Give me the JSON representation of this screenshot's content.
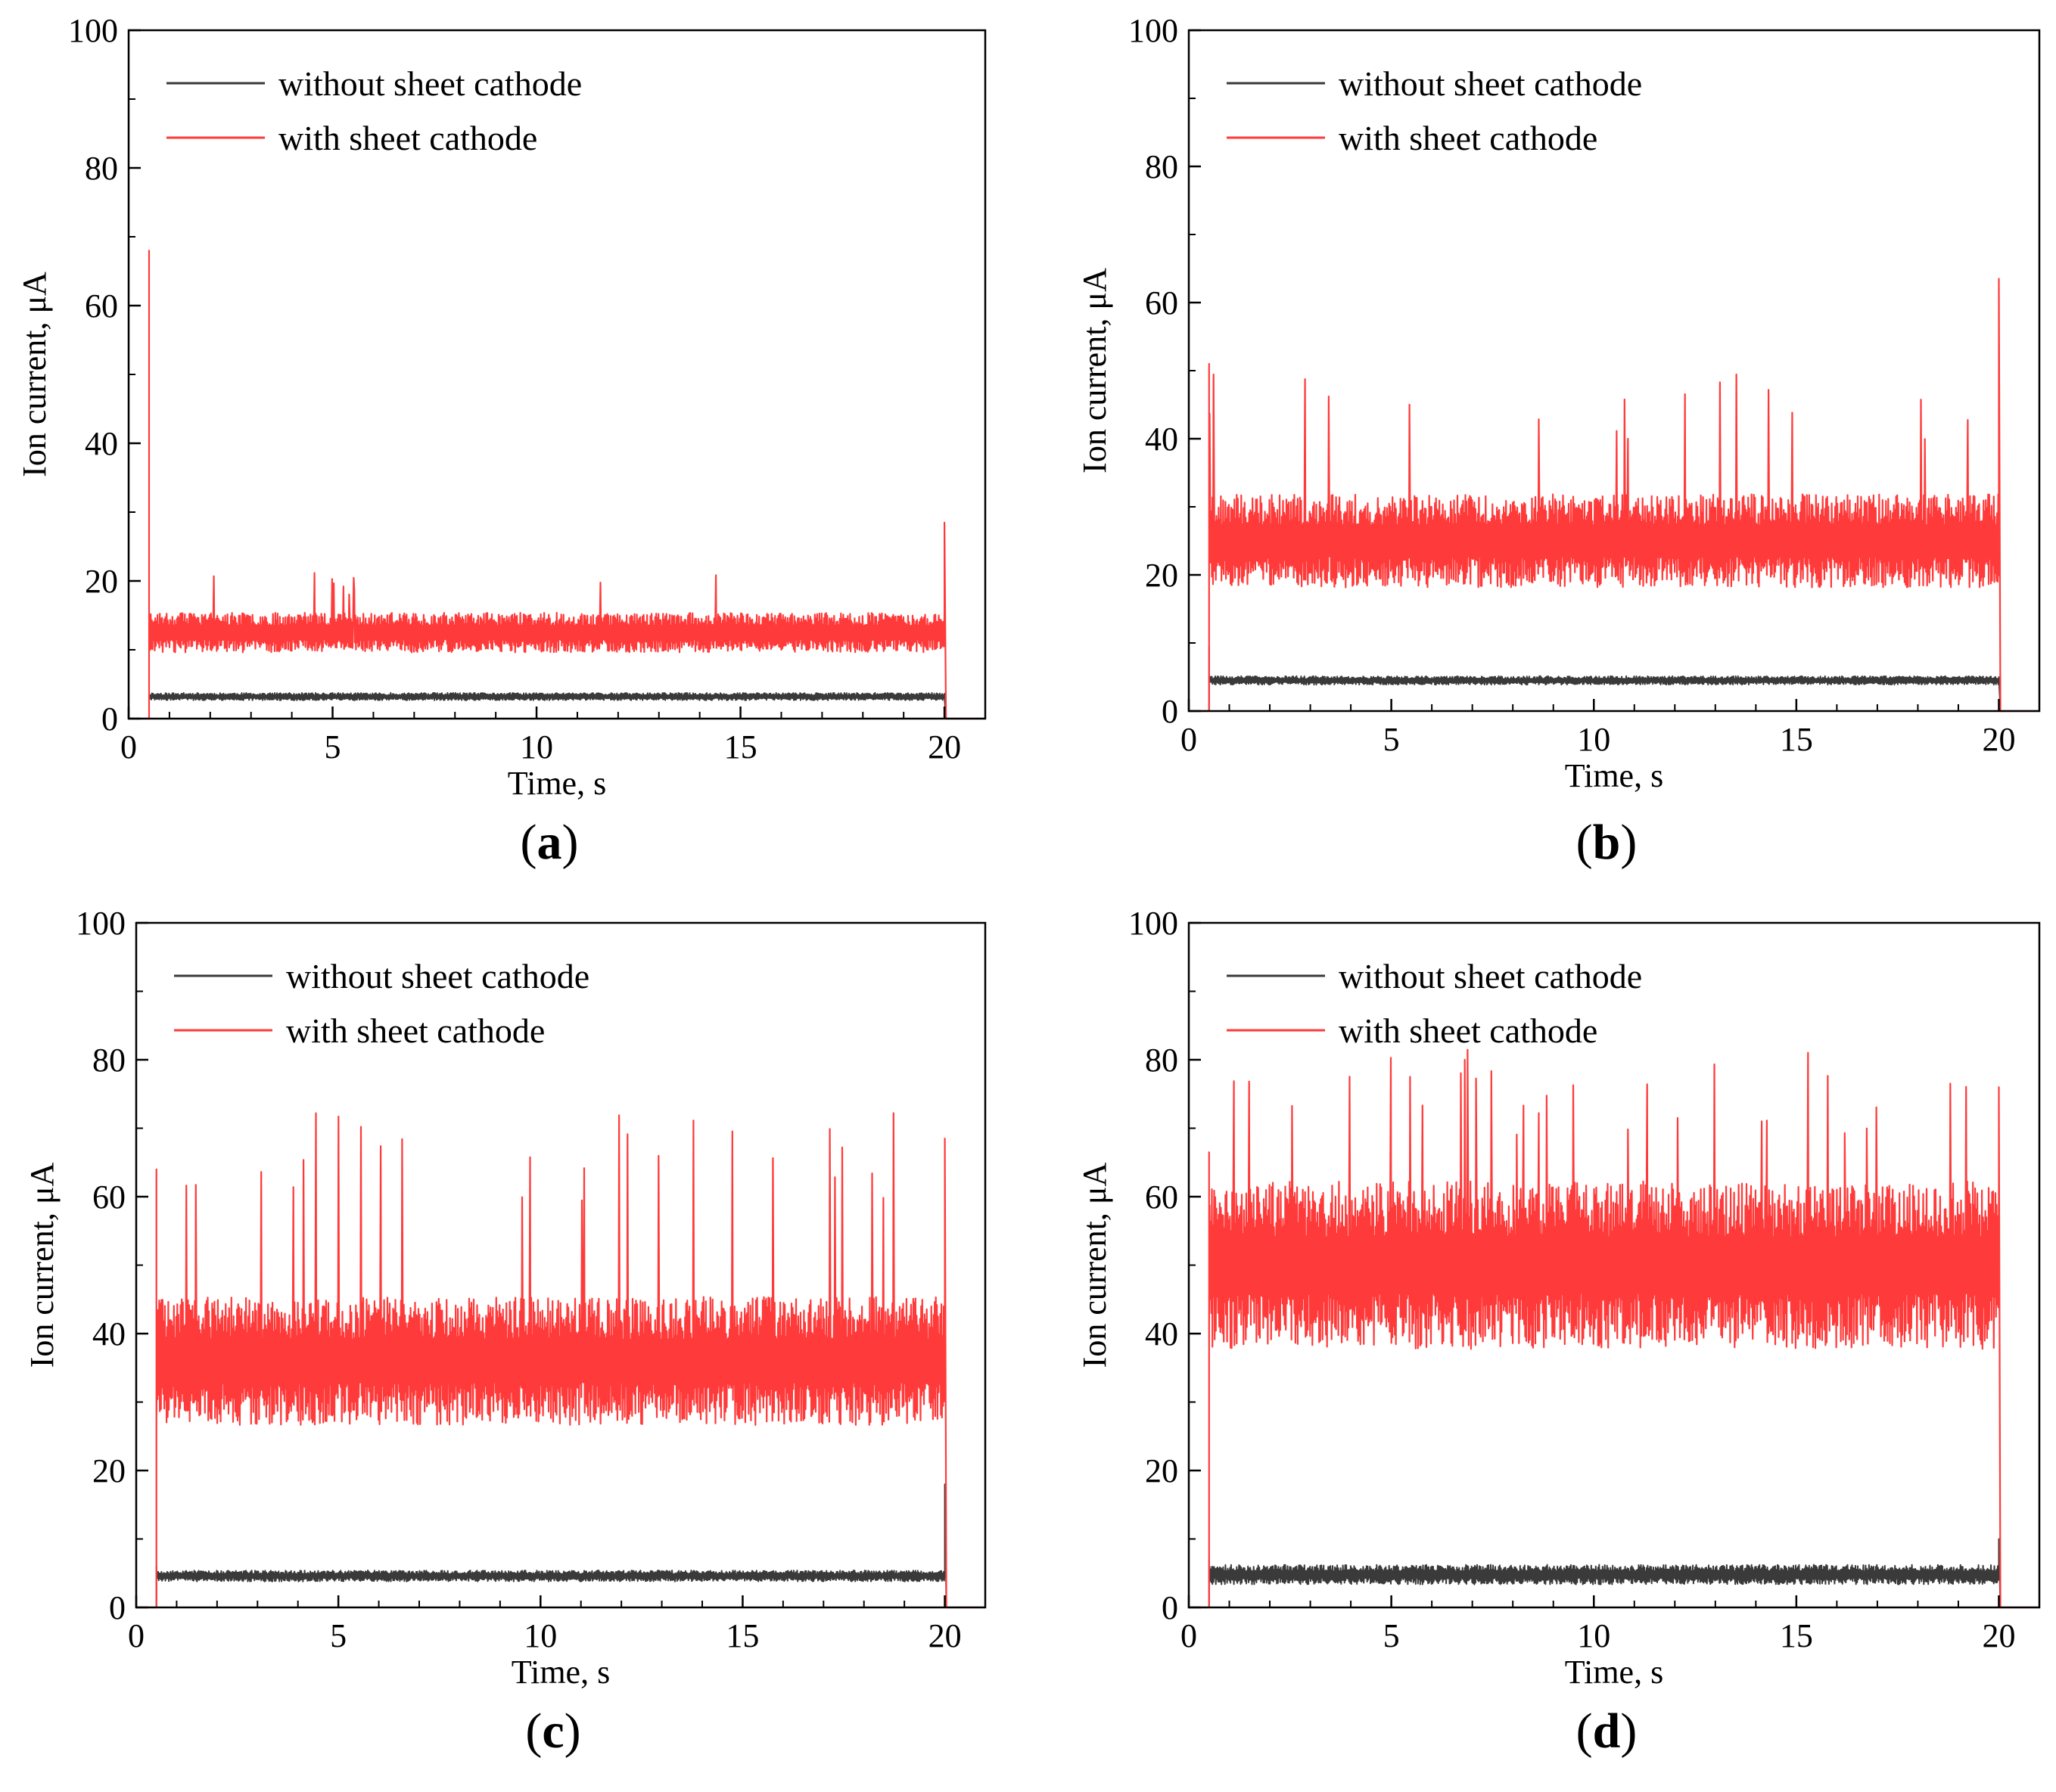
{
  "colors": {
    "without": "#3a3a3a",
    "with": "#ff3a3a",
    "axis": "#000000"
  },
  "chart_data": [
    {
      "type": "line",
      "panel": "a",
      "label_prefix": "(",
      "label_letter": "a",
      "label_suffix": ")",
      "xlabel": "Time, s",
      "ylabel": "Ion current, μA",
      "xlim": [
        0,
        21
      ],
      "ylim": [
        0,
        100
      ],
      "xticks": [
        0,
        5,
        10,
        15,
        20
      ],
      "yticks": [
        0,
        20,
        40,
        60,
        80,
        100
      ],
      "legend": [
        "without sheet cathode",
        "with sheet cathode"
      ],
      "legend_position": "top-left",
      "series": [
        {
          "name": "without sheet cathode",
          "start": 0.5,
          "end": 20.0,
          "mean": 3.2,
          "noise": 0.3,
          "spike_count": 0,
          "spike_max": 0,
          "start_peak": 3.5,
          "end_peak": 3.2,
          "seed": 11
        },
        {
          "name": "with sheet cathode",
          "start": 0.5,
          "end": 20.0,
          "mean": 12.5,
          "noise": 1.6,
          "spike_count": 10,
          "spike_max": 21.5,
          "start_peak": 68,
          "end_peak": 28.5,
          "seed": 23
        }
      ]
    },
    {
      "type": "line",
      "panel": "b",
      "label_prefix": "(",
      "label_letter": "b",
      "label_suffix": ")",
      "xlabel": "Time, s",
      "ylabel": "Ion current, μA",
      "xlim": [
        0,
        21
      ],
      "ylim": [
        0,
        100
      ],
      "xticks": [
        0,
        5,
        10,
        15,
        20
      ],
      "yticks": [
        0,
        20,
        40,
        60,
        80,
        100
      ],
      "legend": [
        "without sheet cathode",
        "with sheet cathode"
      ],
      "legend_position": "top-left",
      "series": [
        {
          "name": "without sheet cathode",
          "start": 0.5,
          "end": 20.0,
          "mean": 4.5,
          "noise": 0.35,
          "spike_count": 0,
          "spike_max": 0,
          "start_peak": 9.5,
          "end_peak": 5,
          "seed": 31
        },
        {
          "name": "with sheet cathode",
          "start": 0.5,
          "end": 20.0,
          "mean": 25,
          "noise": 3.8,
          "spike_count": 18,
          "spike_max": 49.5,
          "start_peak": 51,
          "end_peak": 63.5,
          "seed": 47
        }
      ]
    },
    {
      "type": "line",
      "panel": "c",
      "label_prefix": "(",
      "label_letter": "c",
      "label_suffix": ")",
      "xlabel": "Time, s",
      "ylabel": "Ion current, μA",
      "xlim": [
        0,
        21
      ],
      "ylim": [
        0,
        100
      ],
      "xticks": [
        0,
        5,
        10,
        15,
        20
      ],
      "yticks": [
        0,
        20,
        40,
        60,
        80,
        100
      ],
      "legend": [
        "without sheet cathode",
        "with sheet cathode"
      ],
      "legend_position": "top-left",
      "series": [
        {
          "name": "without sheet cathode",
          "start": 0.5,
          "end": 20.0,
          "mean": 4.6,
          "noise": 0.45,
          "spike_count": 0,
          "spike_max": 0,
          "start_peak": 6,
          "end_peak": 18,
          "seed": 53
        },
        {
          "name": "with sheet cathode",
          "start": 0.5,
          "end": 20.0,
          "mean": 36,
          "noise": 5.2,
          "spike_count": 26,
          "spike_max": 73,
          "start_peak": 64,
          "end_peak": 68.5,
          "seed": 61
        }
      ]
    },
    {
      "type": "line",
      "panel": "d",
      "label_prefix": "(",
      "label_letter": "d",
      "label_suffix": ")",
      "xlabel": "Time, s",
      "ylabel": "Ion current, μA",
      "xlim": [
        0,
        21
      ],
      "ylim": [
        0,
        100
      ],
      "xticks": [
        0,
        5,
        10,
        15,
        20
      ],
      "yticks": [
        0,
        20,
        40,
        60,
        80,
        100
      ],
      "legend": [
        "without sheet cathode",
        "with sheet cathode"
      ],
      "legend_position": "top-left",
      "series": [
        {
          "name": "without sheet cathode",
          "start": 0.5,
          "end": 20.0,
          "mean": 4.8,
          "noise": 0.8,
          "spike_count": 0,
          "spike_max": 0,
          "start_peak": 7,
          "end_peak": 10,
          "seed": 71
        },
        {
          "name": "with sheet cathode",
          "start": 0.5,
          "end": 20.0,
          "mean": 50,
          "noise": 6.8,
          "spike_count": 30,
          "spike_max": 81.5,
          "start_peak": 66.5,
          "end_peak": 76,
          "seed": 89
        }
      ]
    }
  ]
}
